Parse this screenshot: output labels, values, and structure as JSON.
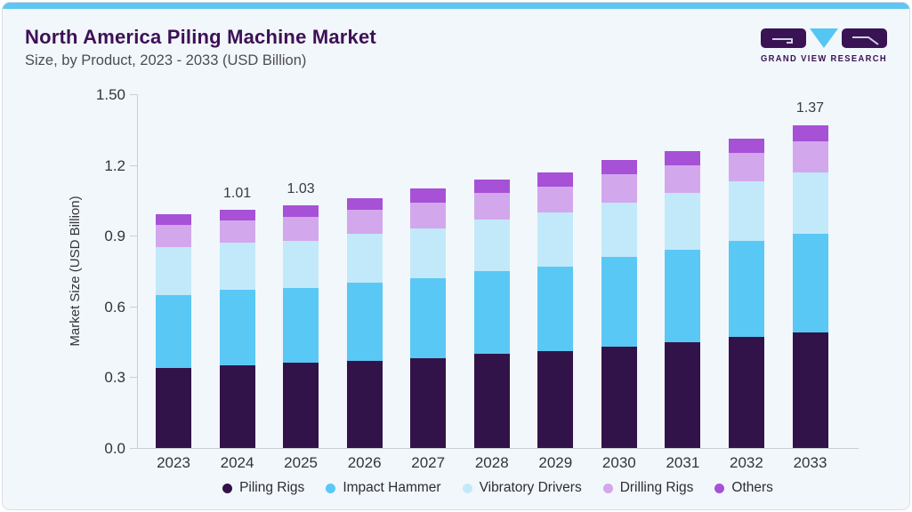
{
  "header": {
    "title": "North America Piling Machine Market",
    "subtitle": "Size, by Product, 2023 - 2033 (USD Billion)"
  },
  "logo": {
    "brand": "Grand View Research",
    "text": "GRAND VIEW RESEARCH",
    "block_color": "#3a1354",
    "triangle_color": "#55c6f1"
  },
  "colors": {
    "card_background": "#f2f7fb",
    "top_stripe": "#5ec6f0",
    "card_border": "#d8dee5",
    "axis": "#c9ced6",
    "title_text": "#3e1056",
    "body_text": "#33343c"
  },
  "chart_data": {
    "type": "bar",
    "stacked": true,
    "title": "North America Piling Machine Market Size, by Product, 2023 - 2033 (USD Billion)",
    "categories": [
      "2023",
      "2024",
      "2025",
      "2026",
      "2027",
      "2028",
      "2029",
      "2030",
      "2031",
      "2032",
      "2033"
    ],
    "series": [
      {
        "name": "Piling Rigs",
        "color": "#321349",
        "values": [
          0.34,
          0.35,
          0.36,
          0.37,
          0.38,
          0.4,
          0.41,
          0.43,
          0.45,
          0.47,
          0.49
        ]
      },
      {
        "name": "Impact Hammer",
        "color": "#5ac8f5",
        "values": [
          0.31,
          0.32,
          0.32,
          0.33,
          0.34,
          0.35,
          0.36,
          0.38,
          0.39,
          0.41,
          0.42
        ]
      },
      {
        "name": "Vibratory Drivers",
        "color": "#c2e9fa",
        "values": [
          0.2,
          0.2,
          0.2,
          0.21,
          0.21,
          0.22,
          0.23,
          0.23,
          0.24,
          0.25,
          0.26
        ]
      },
      {
        "name": "Drilling Rigs",
        "color": "#d3a7ec",
        "values": [
          0.095,
          0.095,
          0.1,
          0.1,
          0.11,
          0.11,
          0.11,
          0.12,
          0.12,
          0.12,
          0.13
        ]
      },
      {
        "name": "Others",
        "color": "#a751d7",
        "values": [
          0.045,
          0.045,
          0.05,
          0.05,
          0.06,
          0.06,
          0.06,
          0.06,
          0.06,
          0.06,
          0.07
        ]
      }
    ],
    "totals": [
      0.99,
      1.01,
      1.03,
      1.06,
      1.1,
      1.14,
      1.17,
      1.22,
      1.26,
      1.31,
      1.37
    ],
    "bar_labels": [
      "",
      "1.01",
      "1.03",
      "",
      "",
      "",
      "",
      "",
      "",
      "",
      "1.37"
    ],
    "xlabel": "",
    "ylabel": "Market Size (USD Billion)",
    "yticks": [
      "0.0",
      "0.3",
      "0.6",
      "0.9",
      "1.2",
      "1.50"
    ],
    "ylim": [
      0,
      1.5
    ],
    "grid": false,
    "legend_position": "bottom"
  }
}
